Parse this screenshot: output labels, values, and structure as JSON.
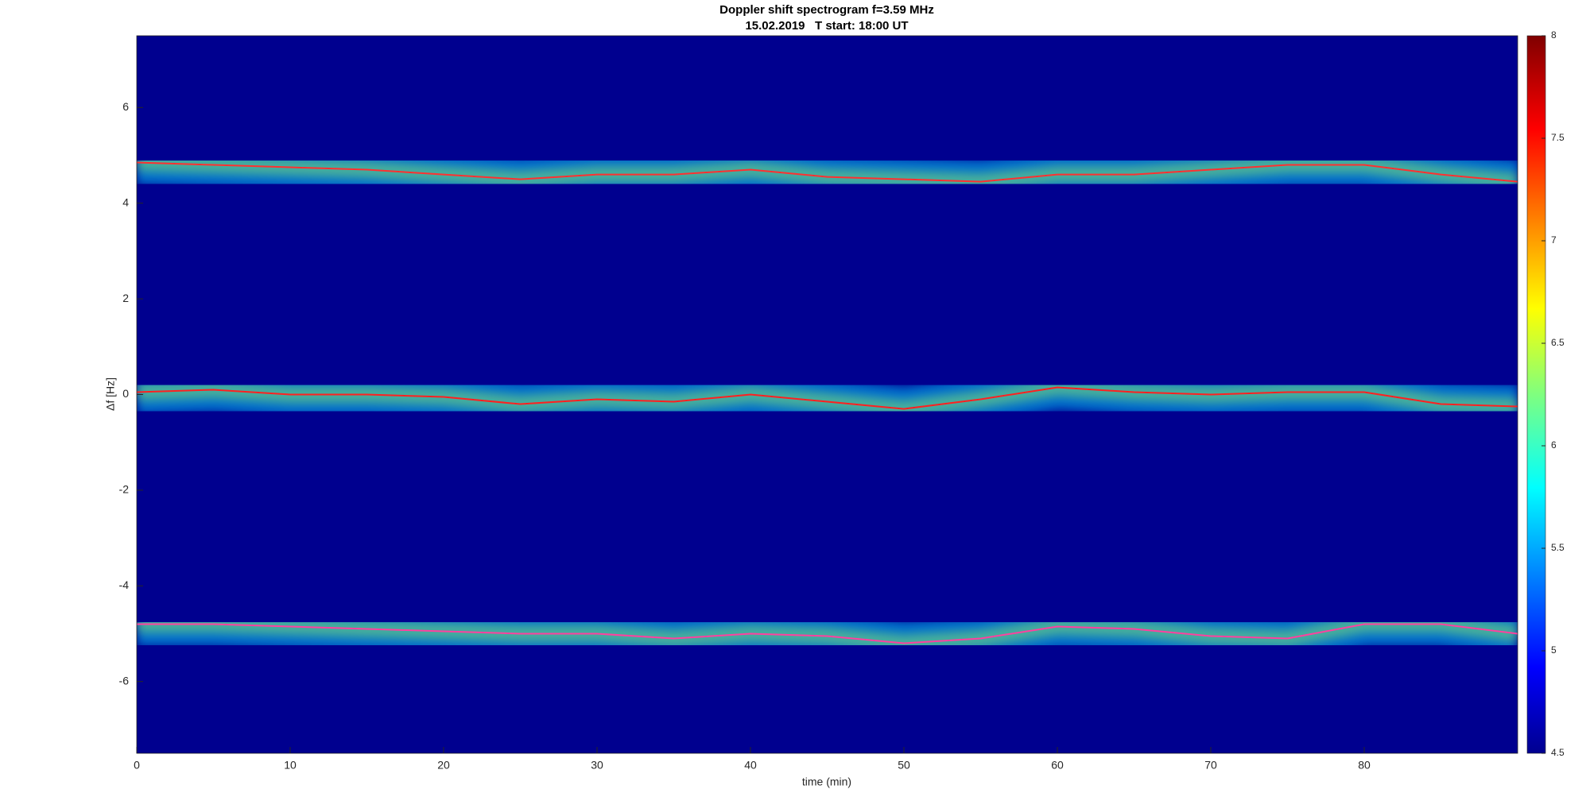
{
  "chart_data": {
    "type": "line",
    "title": "Doppler shift spectrogram f=3.59 MHz",
    "subtitle": "15.02.2019   T start: 18:00 UT",
    "xlabel": "time (min)",
    "ylabel": "Δf [Hz]",
    "xlim": [
      0,
      90
    ],
    "ylim": [
      -7.5,
      7.5
    ],
    "xticks": [
      0,
      10,
      20,
      30,
      40,
      50,
      60,
      70,
      80
    ],
    "yticks": [
      -6,
      -4,
      -2,
      0,
      2,
      4,
      6
    ],
    "background": "#00008f",
    "colorbar": {
      "clim": [
        4.5,
        8
      ],
      "ticks": [
        4.5,
        5,
        5.5,
        6,
        6.5,
        7,
        7.5,
        8
      ]
    },
    "x": [
      0,
      5,
      10,
      15,
      20,
      25,
      30,
      35,
      40,
      45,
      50,
      55,
      60,
      65,
      70,
      75,
      80,
      85,
      90
    ],
    "series": [
      {
        "color": "#ff3030",
        "values": [
          4.85,
          4.8,
          4.75,
          4.7,
          4.6,
          4.5,
          4.6,
          4.6,
          4.7,
          4.55,
          4.5,
          4.45,
          4.6,
          4.6,
          4.7,
          4.8,
          4.8,
          4.6,
          4.45
        ]
      },
      {
        "color": "#ff2020",
        "values": [
          0.05,
          0.1,
          0.0,
          0.0,
          -0.05,
          -0.2,
          -0.1,
          -0.15,
          0.0,
          -0.15,
          -0.3,
          -0.1,
          0.15,
          0.05,
          0.0,
          0.05,
          0.05,
          -0.2,
          -0.25
        ]
      },
      {
        "color": "#ff40a0",
        "values": [
          -4.8,
          -4.8,
          -4.85,
          -4.9,
          -4.95,
          -5.0,
          -5.0,
          -5.1,
          -5.0,
          -5.05,
          -5.2,
          -5.1,
          -4.85,
          -4.9,
          -5.05,
          -5.1,
          -4.8,
          -4.8,
          -5.0
        ]
      }
    ]
  }
}
